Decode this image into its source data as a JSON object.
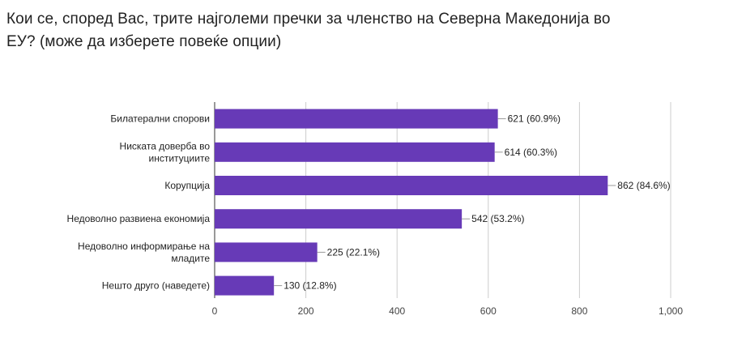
{
  "chart_data": {
    "type": "bar",
    "orientation": "horizontal",
    "title": "Кои се, според Вас, трите најголеми пречки за членство на Северна Македонија во ЕУ?  (може да изберете повеќе опции)",
    "categories": [
      [
        "Билатерални спорови"
      ],
      [
        "Ниската доверба во",
        "институциите"
      ],
      [
        "Корупција"
      ],
      [
        "Недоволно развиена економија"
      ],
      [
        "Недоволно информирање на",
        "младите"
      ],
      [
        "Нешто друго (наведете)"
      ]
    ],
    "values": [
      621,
      614,
      862,
      542,
      225,
      130
    ],
    "data_labels": [
      "621 (60.9%)",
      "614 (60.3%)",
      "862 (84.6%)",
      "542 (53.2%)",
      "225 (22.1%)",
      "130 (12.8%)"
    ],
    "xlim": [
      0,
      1000
    ],
    "xticks": [
      0,
      200,
      400,
      600,
      800,
      1000
    ],
    "xtick_labels": [
      "0",
      "200",
      "400",
      "600",
      "800",
      "1,000"
    ],
    "grid": true,
    "bar_color": "#673ab7"
  }
}
